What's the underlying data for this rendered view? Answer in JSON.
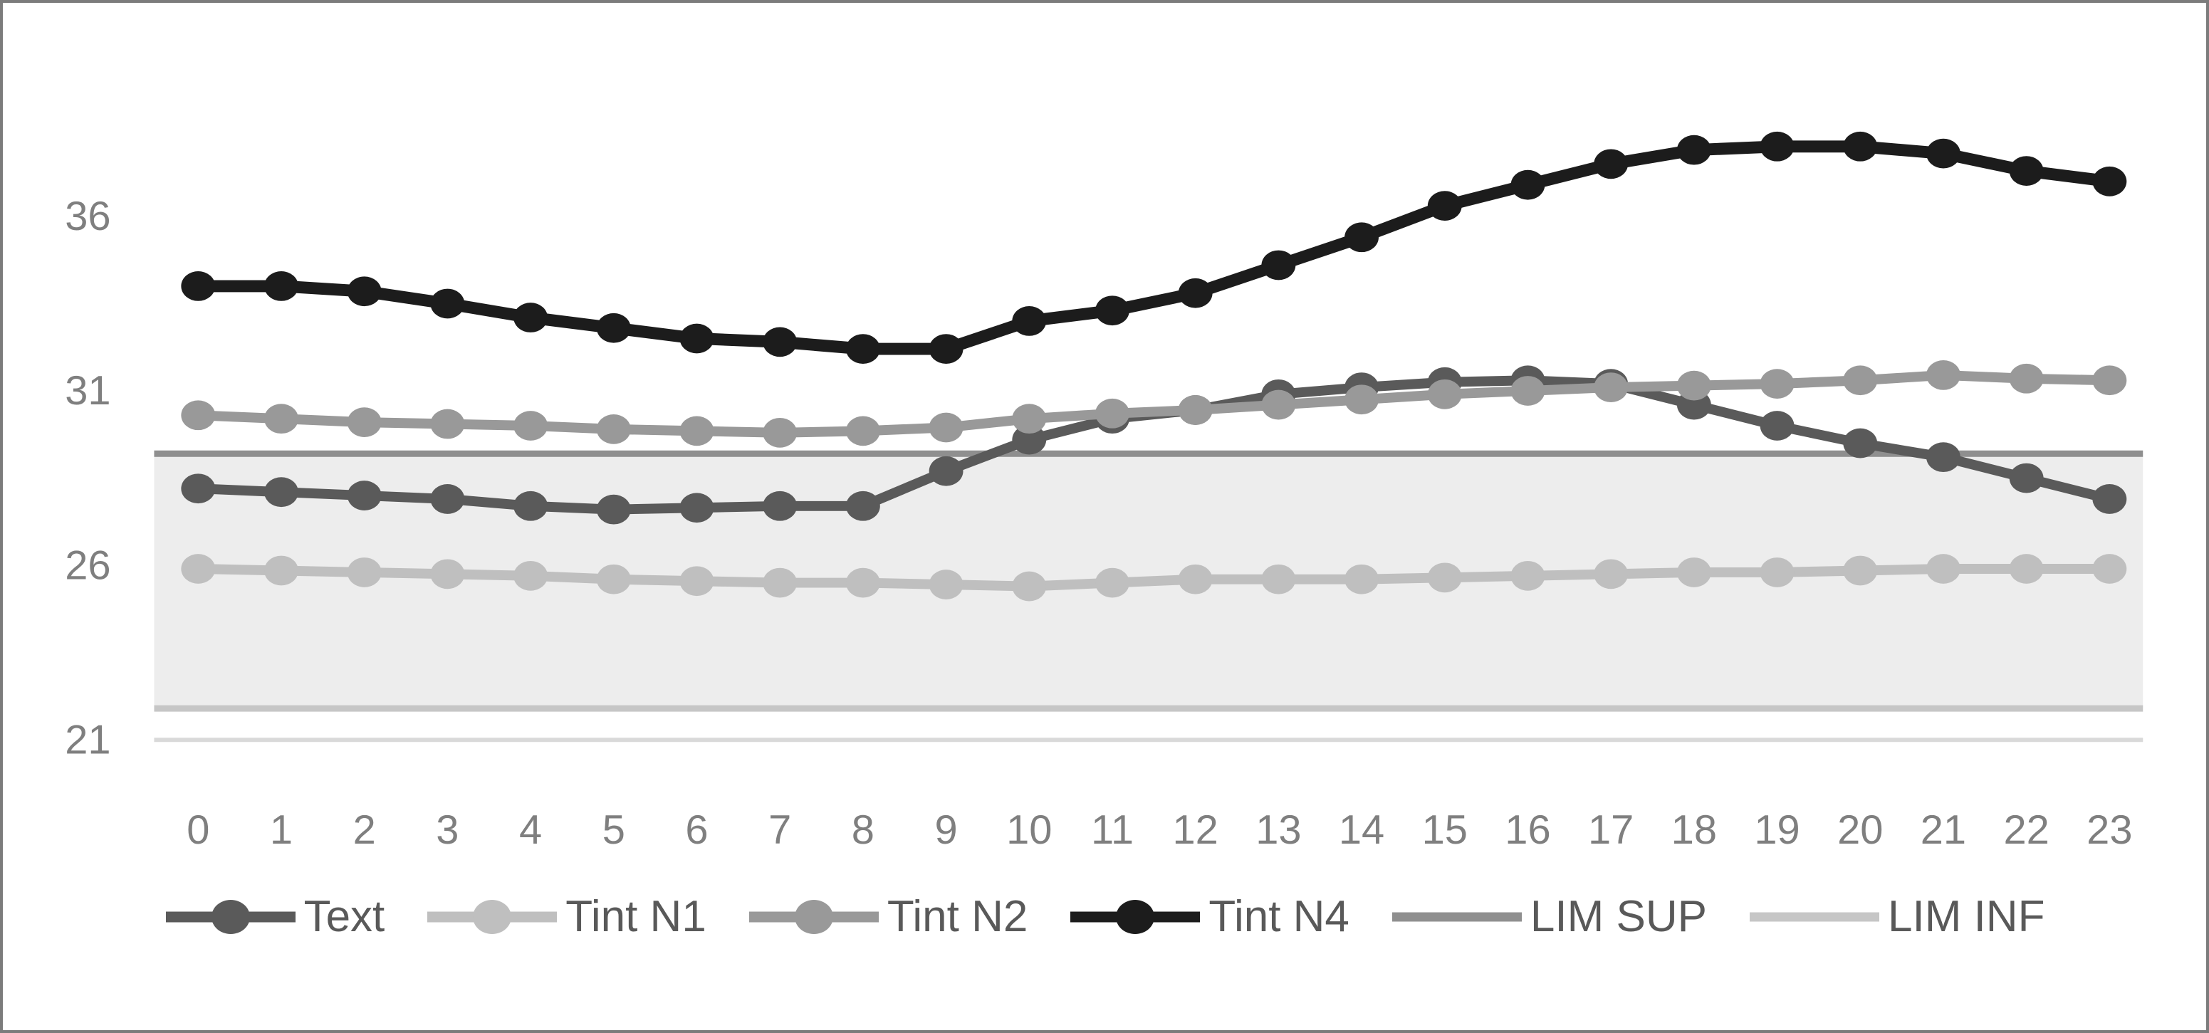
{
  "figure": {
    "kind": "embedded-excel-line-chart",
    "background_color": "#ffffff",
    "border_color": "#7c7c7c"
  },
  "chart_data": {
    "type": "line",
    "title": "",
    "xlabel": "",
    "ylabel": "",
    "grid": false,
    "legend_position": "bottom",
    "x": [
      0,
      1,
      2,
      3,
      4,
      5,
      6,
      7,
      8,
      9,
      10,
      11,
      12,
      13,
      14,
      15,
      16,
      17,
      18,
      19,
      20,
      21,
      22,
      23
    ],
    "x_tick_labels": [
      "0",
      "1",
      "2",
      "3",
      "4",
      "5",
      "6",
      "7",
      "8",
      "9",
      "10",
      "11",
      "12",
      "13",
      "14",
      "15",
      "16",
      "17",
      "18",
      "19",
      "20",
      "21",
      "22",
      "23"
    ],
    "y_ticks": [
      21,
      26,
      31,
      36
    ],
    "ylim": [
      21,
      39.1
    ],
    "axis_line_color": "#d9d9d9",
    "tick_color": "#7f7f7f",
    "series": [
      {
        "name": "Text",
        "color": "#5a5a5a",
        "marker": true,
        "line_width": 14,
        "values": [
          28.2,
          28.1,
          28.0,
          27.9,
          27.7,
          27.6,
          27.65,
          27.7,
          27.7,
          28.7,
          29.6,
          30.2,
          30.45,
          30.9,
          31.1,
          31.25,
          31.3,
          31.2,
          30.6,
          30.0,
          29.5,
          29.1,
          28.5,
          27.9
        ]
      },
      {
        "name": "Tint N1",
        "color": "#bfbfbf",
        "marker": true,
        "line_width": 14,
        "values": [
          25.9,
          25.85,
          25.8,
          25.75,
          25.7,
          25.6,
          25.55,
          25.5,
          25.5,
          25.45,
          25.4,
          25.5,
          25.6,
          25.6,
          25.6,
          25.65,
          25.7,
          25.75,
          25.8,
          25.8,
          25.85,
          25.9,
          25.9,
          25.9
        ]
      },
      {
        "name": "Tint N2",
        "color": "#999999",
        "marker": true,
        "line_width": 14,
        "values": [
          30.3,
          30.2,
          30.1,
          30.05,
          30.0,
          29.9,
          29.85,
          29.8,
          29.85,
          29.95,
          30.2,
          30.35,
          30.45,
          30.6,
          30.75,
          30.9,
          31.0,
          31.1,
          31.15,
          31.2,
          31.3,
          31.45,
          31.35,
          31.3
        ]
      },
      {
        "name": "Tint N4",
        "color": "#1c1c1c",
        "marker": true,
        "line_width": 17,
        "values": [
          34.0,
          34.0,
          33.85,
          33.5,
          33.1,
          32.8,
          32.5,
          32.4,
          32.2,
          32.2,
          33.0,
          33.3,
          33.8,
          34.6,
          35.4,
          36.3,
          36.9,
          37.5,
          37.9,
          38.0,
          38.0,
          37.8,
          37.3,
          37.0
        ]
      },
      {
        "name": "LIM SUP",
        "color": "#8f8f8f",
        "marker": false,
        "line_width": 9,
        "limit": true,
        "value": 29.2
      },
      {
        "name": "LIM INF",
        "color": "#c6c6c6",
        "marker": false,
        "line_width": 9,
        "limit": true,
        "value": 21.9
      }
    ],
    "band": {
      "from": 21.9,
      "to": 29.2,
      "fill": "#ededed"
    }
  }
}
